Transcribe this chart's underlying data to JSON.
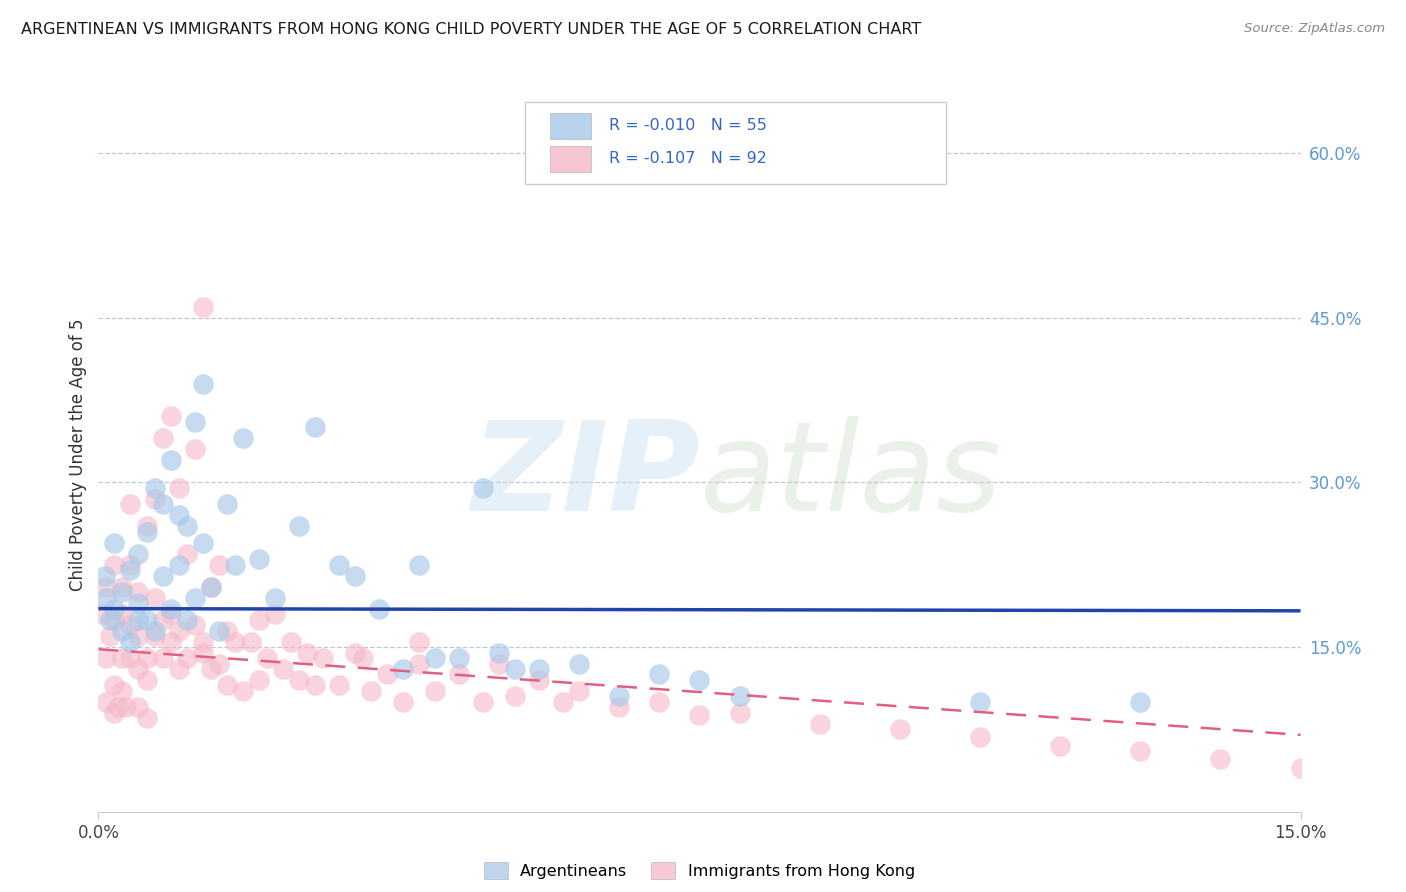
{
  "title": "ARGENTINEAN VS IMMIGRANTS FROM HONG KONG CHILD POVERTY UNDER THE AGE OF 5 CORRELATION CHART",
  "source": "Source: ZipAtlas.com",
  "ylabel": "Child Poverty Under the Age of 5",
  "legend_label1": "Argentineans",
  "legend_label2": "Immigrants from Hong Kong",
  "R1": "-0.010",
  "N1": "55",
  "R2": "-0.107",
  "N2": "92",
  "blue_color": "#a8c8e8",
  "pink_color": "#f5b8c8",
  "blue_line_color": "#2244aa",
  "pink_line_color": "#e06080",
  "xmin": 0.0,
  "xmax": 0.15,
  "ymin": 0.0,
  "ymax": 0.65,
  "blue_line_y0": 0.185,
  "blue_line_y1": 0.183,
  "pink_line_y0": 0.148,
  "pink_line_y1": 0.07,
  "blue_x": [
    0.0008,
    0.001,
    0.0015,
    0.002,
    0.002,
    0.003,
    0.003,
    0.004,
    0.004,
    0.005,
    0.005,
    0.005,
    0.006,
    0.006,
    0.007,
    0.007,
    0.008,
    0.008,
    0.009,
    0.009,
    0.01,
    0.01,
    0.011,
    0.011,
    0.012,
    0.012,
    0.013,
    0.013,
    0.014,
    0.015,
    0.016,
    0.017,
    0.018,
    0.02,
    0.022,
    0.025,
    0.027,
    0.03,
    0.032,
    0.035,
    0.038,
    0.042,
    0.048,
    0.052,
    0.055,
    0.06,
    0.07,
    0.08,
    0.11,
    0.13,
    0.04,
    0.045,
    0.05,
    0.065,
    0.075
  ],
  "blue_y": [
    0.215,
    0.195,
    0.175,
    0.185,
    0.245,
    0.165,
    0.2,
    0.155,
    0.22,
    0.175,
    0.235,
    0.19,
    0.175,
    0.255,
    0.165,
    0.295,
    0.215,
    0.28,
    0.185,
    0.32,
    0.225,
    0.27,
    0.175,
    0.26,
    0.355,
    0.195,
    0.39,
    0.245,
    0.205,
    0.165,
    0.28,
    0.225,
    0.34,
    0.23,
    0.195,
    0.26,
    0.35,
    0.225,
    0.215,
    0.185,
    0.13,
    0.14,
    0.295,
    0.13,
    0.13,
    0.135,
    0.125,
    0.105,
    0.1,
    0.1,
    0.225,
    0.14,
    0.145,
    0.105,
    0.12
  ],
  "pink_x": [
    0.0005,
    0.001,
    0.001,
    0.001,
    0.0015,
    0.002,
    0.002,
    0.002,
    0.002,
    0.0025,
    0.003,
    0.003,
    0.003,
    0.003,
    0.0035,
    0.004,
    0.004,
    0.004,
    0.004,
    0.005,
    0.005,
    0.005,
    0.005,
    0.006,
    0.006,
    0.006,
    0.006,
    0.007,
    0.007,
    0.007,
    0.008,
    0.008,
    0.008,
    0.009,
    0.009,
    0.009,
    0.01,
    0.01,
    0.01,
    0.011,
    0.011,
    0.012,
    0.012,
    0.013,
    0.013,
    0.013,
    0.014,
    0.014,
    0.015,
    0.015,
    0.016,
    0.016,
    0.017,
    0.018,
    0.019,
    0.02,
    0.02,
    0.021,
    0.022,
    0.023,
    0.024,
    0.025,
    0.026,
    0.027,
    0.028,
    0.03,
    0.032,
    0.034,
    0.036,
    0.038,
    0.04,
    0.042,
    0.045,
    0.048,
    0.05,
    0.052,
    0.055,
    0.058,
    0.06,
    0.065,
    0.07,
    0.075,
    0.08,
    0.09,
    0.1,
    0.11,
    0.12,
    0.13,
    0.14,
    0.15,
    0.04,
    0.033
  ],
  "pink_y": [
    0.18,
    0.205,
    0.14,
    0.1,
    0.16,
    0.09,
    0.115,
    0.175,
    0.225,
    0.095,
    0.14,
    0.11,
    0.18,
    0.205,
    0.095,
    0.14,
    0.17,
    0.225,
    0.28,
    0.13,
    0.095,
    0.16,
    0.2,
    0.12,
    0.14,
    0.085,
    0.26,
    0.16,
    0.195,
    0.285,
    0.14,
    0.175,
    0.34,
    0.155,
    0.18,
    0.36,
    0.13,
    0.165,
    0.295,
    0.14,
    0.235,
    0.33,
    0.17,
    0.145,
    0.46,
    0.155,
    0.205,
    0.13,
    0.225,
    0.135,
    0.165,
    0.115,
    0.155,
    0.11,
    0.155,
    0.12,
    0.175,
    0.14,
    0.18,
    0.13,
    0.155,
    0.12,
    0.145,
    0.115,
    0.14,
    0.115,
    0.145,
    0.11,
    0.125,
    0.1,
    0.135,
    0.11,
    0.125,
    0.1,
    0.135,
    0.105,
    0.12,
    0.1,
    0.11,
    0.095,
    0.1,
    0.088,
    0.09,
    0.08,
    0.075,
    0.068,
    0.06,
    0.055,
    0.048,
    0.04,
    0.155,
    0.14
  ]
}
